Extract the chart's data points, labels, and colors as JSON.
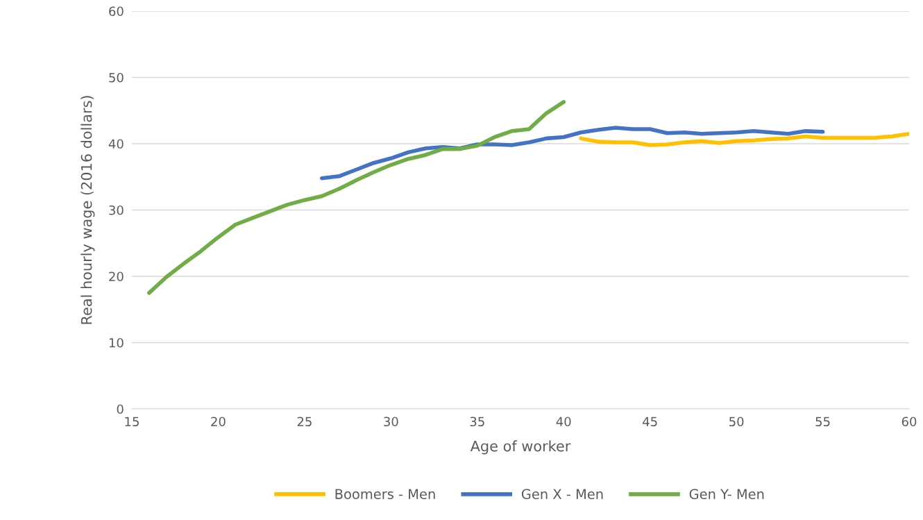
{
  "chart_data": {
    "type": "line",
    "xlabel": "Age of worker",
    "ylabel": "Real hourly wage (2016 dollars)",
    "xlim": [
      15,
      60
    ],
    "xticks": [
      15,
      20,
      25,
      30,
      35,
      40,
      45,
      50,
      55,
      60
    ],
    "ylim": [
      0,
      60
    ],
    "yticks": [
      0,
      10,
      20,
      30,
      40,
      50,
      60
    ],
    "grid": "y",
    "legend": "bottom",
    "marker": "none",
    "line_style": "solid",
    "series": [
      {
        "name": "Boomers - Men",
        "color": "#ffc000",
        "x": [
          41,
          42,
          43,
          44,
          45,
          46,
          47,
          48,
          49,
          50,
          51,
          52,
          53,
          54,
          55,
          56,
          57,
          58,
          59,
          60
        ],
        "values": [
          40.8,
          40.3,
          40.2,
          40.2,
          39.8,
          39.9,
          40.2,
          40.4,
          40.1,
          40.4,
          40.5,
          40.7,
          40.8,
          41.1,
          40.9,
          40.9,
          40.9,
          40.9,
          41.1,
          41.5
        ]
      },
      {
        "name": "Gen X - Men",
        "color": "#4472c4",
        "x": [
          26,
          27,
          28,
          29,
          30,
          31,
          32,
          33,
          34,
          35,
          36,
          37,
          38,
          39,
          40,
          41,
          42,
          43,
          44,
          45,
          46,
          47,
          48,
          49,
          50,
          51,
          52,
          53,
          54,
          55
        ],
        "values": [
          34.8,
          35.1,
          36.1,
          37.1,
          37.8,
          38.7,
          39.3,
          39.5,
          39.3,
          39.9,
          39.9,
          39.8,
          40.2,
          40.8,
          41.0,
          41.7,
          42.1,
          42.4,
          42.2,
          42.2,
          41.6,
          41.7,
          41.5,
          41.6,
          41.7,
          41.9,
          41.7,
          41.5,
          41.9,
          41.8
        ]
      },
      {
        "name": "Gen Y- Men",
        "color": "#70ad47",
        "x": [
          16,
          17,
          18,
          19,
          20,
          21,
          22,
          23,
          24,
          25,
          26,
          27,
          28,
          29,
          30,
          31,
          32,
          33,
          34,
          35,
          36,
          37,
          38,
          39,
          40
        ],
        "values": [
          17.5,
          19.9,
          21.9,
          23.8,
          25.9,
          27.8,
          28.8,
          29.8,
          30.8,
          31.5,
          32.1,
          33.2,
          34.5,
          35.7,
          36.8,
          37.7,
          38.3,
          39.2,
          39.2,
          39.7,
          41.0,
          41.9,
          42.2,
          44.6,
          46.3
        ]
      }
    ]
  }
}
